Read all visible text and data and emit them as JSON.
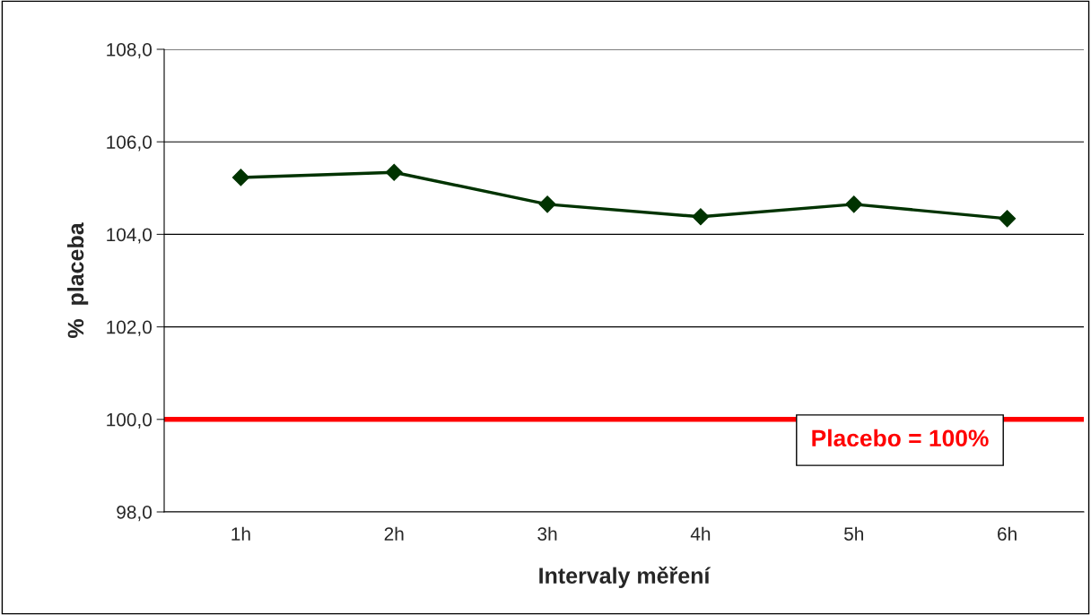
{
  "chart_data": {
    "type": "line",
    "xlabel": "Intervaly měření",
    "ylabel": "%  placeba",
    "categories": [
      "1h",
      "2h",
      "3h",
      "4h",
      "5h",
      "6h"
    ],
    "series": [
      {
        "color": "#003300",
        "values": [
          105.23,
          105.34,
          104.65,
          104.38,
          104.65,
          104.34
        ]
      }
    ],
    "marker": "diamond",
    "line_style": "solid",
    "ylim": [
      98,
      108
    ],
    "yticks": [
      {
        "value": 98,
        "label": "98,0"
      },
      {
        "value": 100,
        "label": "100,0"
      },
      {
        "value": 102,
        "label": "102,0"
      },
      {
        "value": 104,
        "label": "104,0"
      },
      {
        "value": 106,
        "label": "106,0"
      },
      {
        "value": 108,
        "label": "108,0"
      }
    ],
    "ref_lines": [
      {
        "axis": "y",
        "value": 100,
        "label": "Placebo = 100%",
        "color": "#ff0000",
        "line_style": "solid"
      }
    ],
    "grid": "y"
  }
}
